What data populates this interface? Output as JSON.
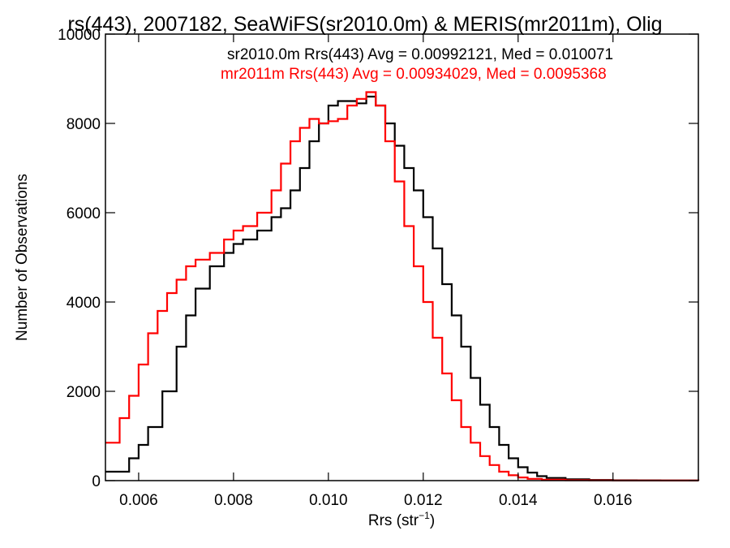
{
  "chart_data": {
    "type": "line",
    "title": "rs(443), 2007182, SeaWiFS(sr2010.0m) & MERIS(mr2011m), Olig",
    "xlabel": "Rrs (str",
    "xlabel_sup": "−1",
    "xlabel_close": ")",
    "ylabel": "Number of Observations",
    "xlim": [
      0.0053,
      0.0178
    ],
    "ylim": [
      0,
      10000
    ],
    "xticks": [
      0.006,
      0.008,
      0.01,
      0.012,
      0.014,
      0.016
    ],
    "xtick_labels": [
      "0.006",
      "0.008",
      "0.010",
      "0.012",
      "0.014",
      "0.016"
    ],
    "yticks": [
      0,
      2000,
      4000,
      6000,
      8000,
      10000
    ],
    "ytick_labels": [
      "0",
      "2000",
      "4000",
      "6000",
      "8000",
      "10000"
    ],
    "grid": false,
    "legend_placement": "top",
    "series": [
      {
        "name": "sr2010.0m",
        "color": "#000000",
        "label": "sr2010.0m Rrs(443) Avg = 0.00992121, Med = 0.010071",
        "x": [
          0.0053,
          0.0058,
          0.006,
          0.0062,
          0.0065,
          0.0068,
          0.007,
          0.0072,
          0.0075,
          0.0078,
          0.008,
          0.0082,
          0.0085,
          0.0088,
          0.009,
          0.0092,
          0.0094,
          0.0096,
          0.0098,
          0.01,
          0.0102,
          0.0104,
          0.0106,
          0.0108,
          0.011,
          0.0112,
          0.0114,
          0.0116,
          0.0118,
          0.012,
          0.0122,
          0.0124,
          0.0126,
          0.0128,
          0.013,
          0.0132,
          0.0134,
          0.0136,
          0.0138,
          0.014,
          0.0142,
          0.0144,
          0.0146,
          0.015,
          0.0155,
          0.016,
          0.0165,
          0.017,
          0.0178
        ],
        "y": [
          200,
          500,
          800,
          1200,
          2000,
          3000,
          3700,
          4300,
          4800,
          5100,
          5300,
          5400,
          5600,
          5900,
          6100,
          6500,
          7000,
          7600,
          8000,
          8400,
          8500,
          8500,
          8450,
          8600,
          8400,
          8000,
          7500,
          7000,
          6500,
          5900,
          5200,
          4400,
          3700,
          3000,
          2300,
          1700,
          1200,
          800,
          500,
          300,
          180,
          100,
          60,
          30,
          15,
          8,
          5,
          3,
          1
        ]
      },
      {
        "name": "mr2011m",
        "color": "#ff0000",
        "label": "mr2011m Rrs(443) Avg = 0.00934029, Med = 0.0095368",
        "x": [
          0.0053,
          0.0056,
          0.0058,
          0.006,
          0.0062,
          0.0064,
          0.0066,
          0.0068,
          0.007,
          0.0072,
          0.0075,
          0.0078,
          0.008,
          0.0082,
          0.0085,
          0.0088,
          0.009,
          0.0092,
          0.0094,
          0.0096,
          0.0098,
          0.01,
          0.0102,
          0.0104,
          0.0106,
          0.0108,
          0.011,
          0.0112,
          0.0114,
          0.0116,
          0.0118,
          0.012,
          0.0122,
          0.0124,
          0.0126,
          0.0128,
          0.013,
          0.0132,
          0.0134,
          0.0136,
          0.0138,
          0.014,
          0.0142,
          0.0145,
          0.015,
          0.0155,
          0.016,
          0.017,
          0.0178
        ],
        "y": [
          850,
          1400,
          1900,
          2600,
          3300,
          3800,
          4200,
          4500,
          4800,
          4950,
          5100,
          5400,
          5600,
          5700,
          6000,
          6500,
          7100,
          7600,
          7900,
          8100,
          8000,
          8050,
          8100,
          8400,
          8550,
          8700,
          8400,
          7600,
          6700,
          5700,
          4800,
          4000,
          3200,
          2400,
          1800,
          1200,
          850,
          550,
          350,
          200,
          120,
          70,
          40,
          20,
          10,
          5,
          3,
          1,
          0
        ]
      }
    ]
  }
}
